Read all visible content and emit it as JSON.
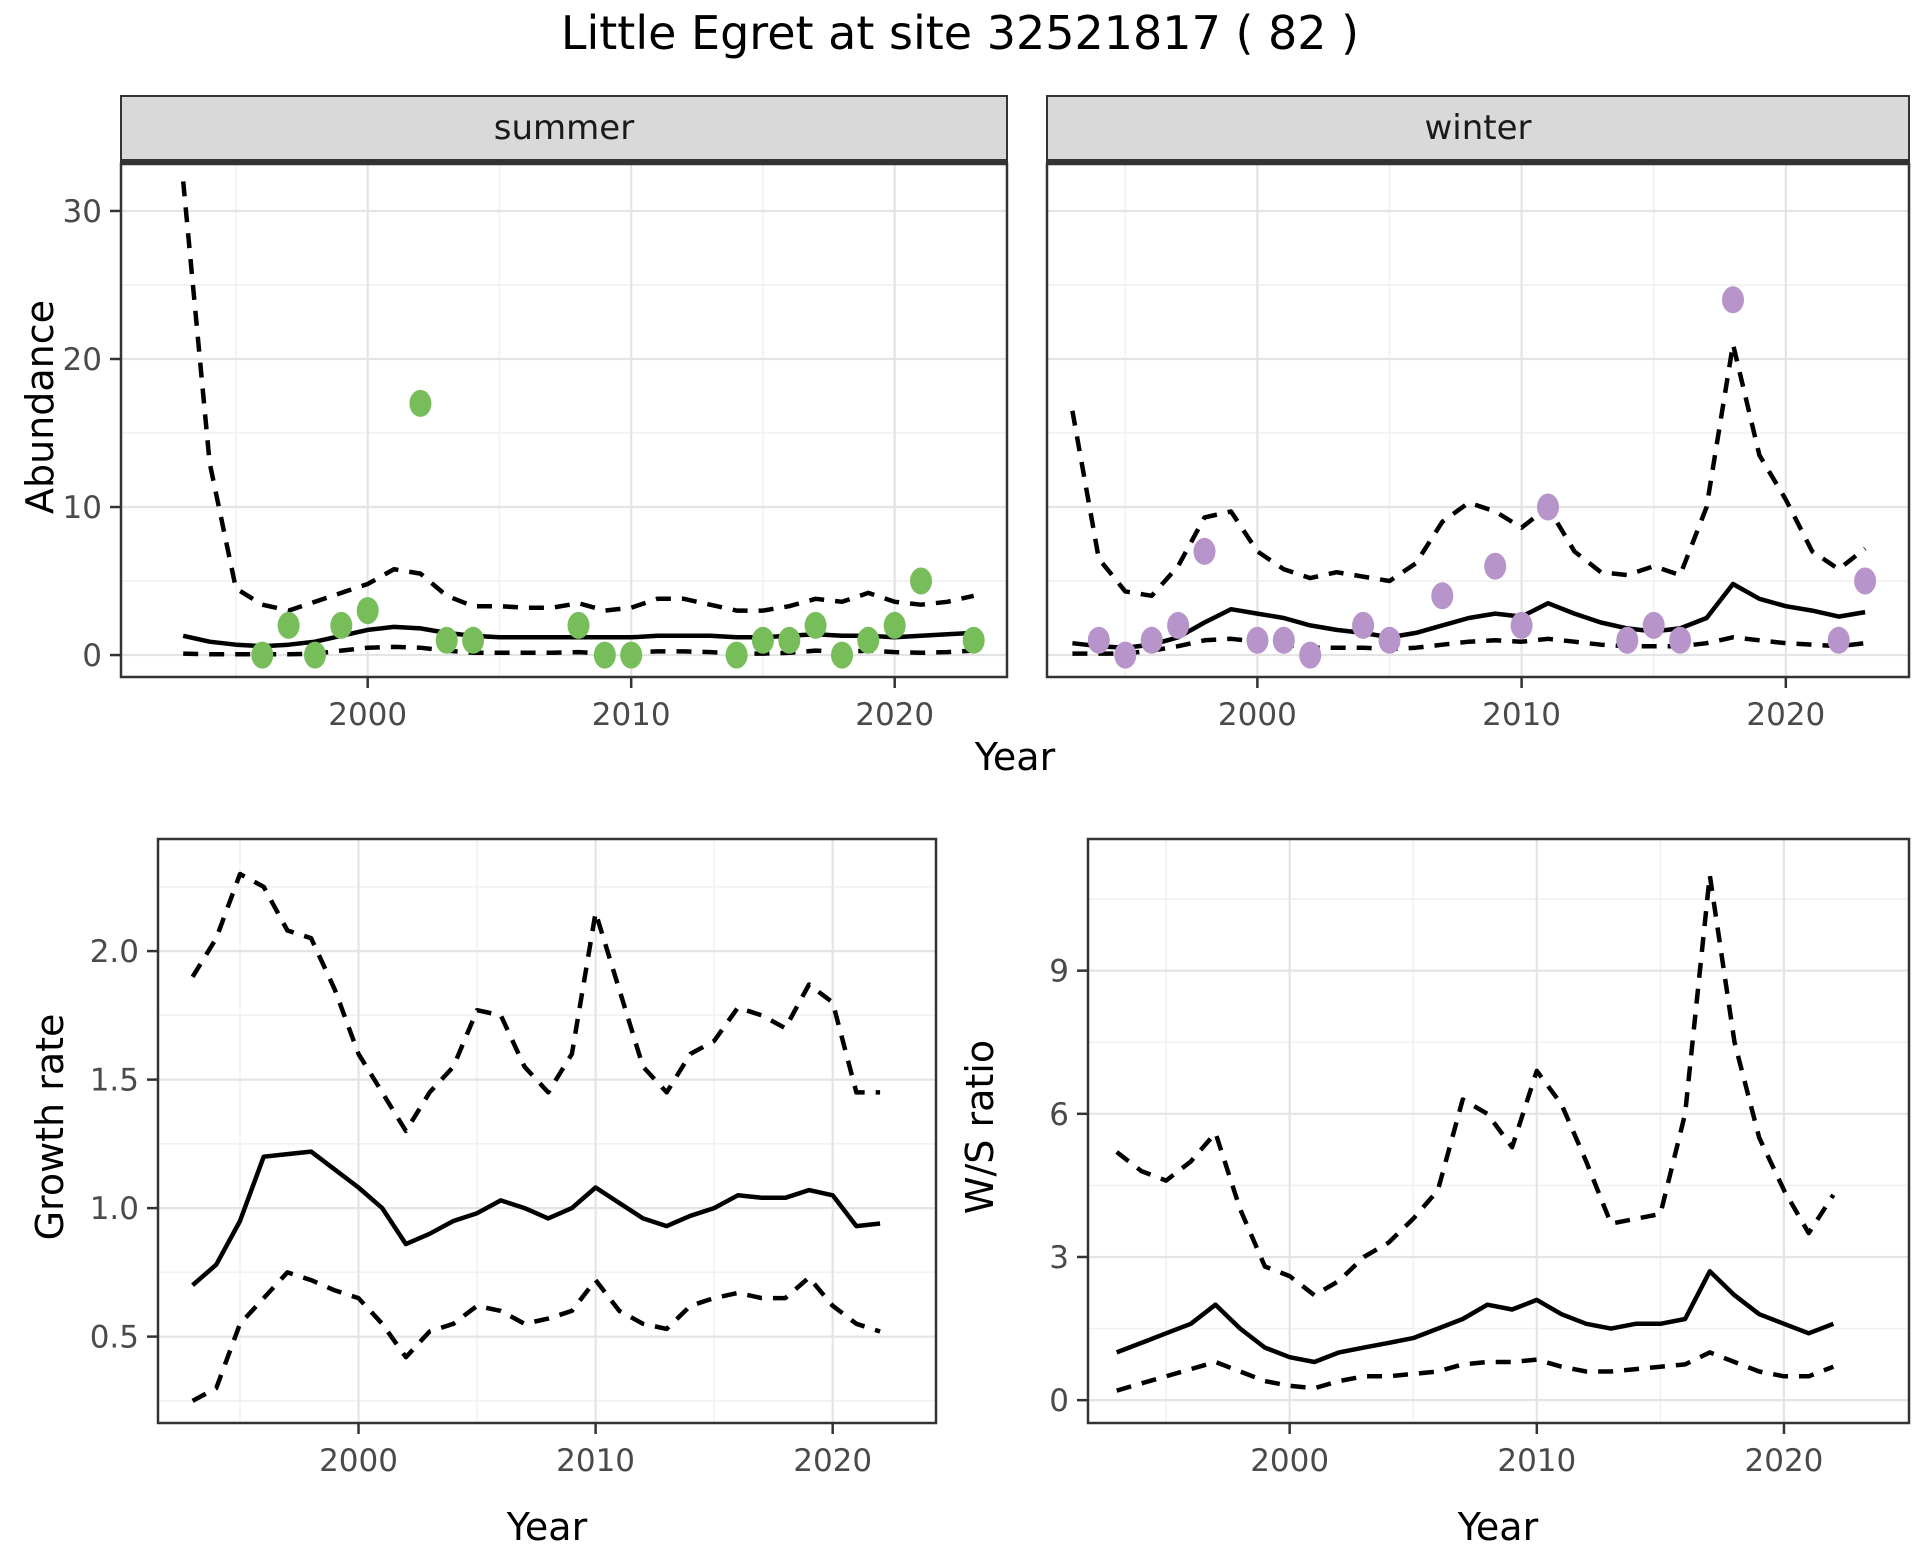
{
  "title": "Little Egret at site 32521817 ( 82 )",
  "axis_titles": {
    "x_top": "Year",
    "x_bottom_left": "Year",
    "x_bottom_right": "Year",
    "y_top": "Abundance",
    "y_growth": "Growth rate",
    "y_ws": "W/S ratio"
  },
  "colors": {
    "summer_points": "#77BE5B",
    "winter_points": "#B794C9",
    "line": "#000000",
    "strip_bg": "#d9d9d9",
    "panel_border": "#333333"
  },
  "chart_data": [
    {
      "id": "summer",
      "type": "line",
      "facet_label": "summer",
      "xlabel": "Year",
      "ylabel": "Abundance",
      "xlim": [
        1990.6,
        2024.3
      ],
      "ylim": [
        -1.55,
        33.24
      ],
      "x_ticks": {
        "major": [
          2000,
          2010,
          2020
        ],
        "minor": [
          1995,
          2005,
          2015
        ],
        "labels": [
          "2000",
          "2010",
          "2020"
        ],
        "show_labels": true
      },
      "y_ticks": {
        "major": [
          0,
          10,
          20,
          30
        ],
        "minor": [
          5,
          15,
          25
        ],
        "labels": [
          "0",
          "10",
          "20",
          "30"
        ],
        "show_labels": true
      },
      "series": [
        {
          "name": "upper-ci",
          "style": "dashed",
          "x": [
            1993,
            1994,
            1995,
            1996,
            1997,
            1998,
            1999,
            2000,
            2001,
            2002,
            2003,
            2004,
            2005,
            2006,
            2007,
            2008,
            2009,
            2010,
            2011,
            2012,
            2013,
            2014,
            2015,
            2016,
            2017,
            2018,
            2019,
            2020,
            2021,
            2022,
            2023
          ],
          "y": [
            32,
            13,
            4.5,
            3.4,
            3.0,
            3.6,
            4.2,
            4.8,
            5.8,
            5.5,
            4.0,
            3.3,
            3.3,
            3.2,
            3.2,
            3.5,
            3.0,
            3.2,
            3.8,
            3.8,
            3.4,
            3.0,
            3.0,
            3.3,
            3.8,
            3.6,
            4.2,
            3.6,
            3.4,
            3.6,
            4.0
          ]
        },
        {
          "name": "median",
          "style": "solid",
          "x": [
            1993,
            1994,
            1995,
            1996,
            1997,
            1998,
            1999,
            2000,
            2001,
            2002,
            2003,
            2004,
            2005,
            2006,
            2007,
            2008,
            2009,
            2010,
            2011,
            2012,
            2013,
            2014,
            2015,
            2016,
            2017,
            2018,
            2019,
            2020,
            2021,
            2022,
            2023
          ],
          "y": [
            1.3,
            0.9,
            0.7,
            0.6,
            0.7,
            0.9,
            1.3,
            1.7,
            1.9,
            1.8,
            1.5,
            1.3,
            1.2,
            1.2,
            1.2,
            1.2,
            1.2,
            1.2,
            1.3,
            1.3,
            1.3,
            1.2,
            1.2,
            1.3,
            1.4,
            1.3,
            1.3,
            1.2,
            1.3,
            1.4,
            1.5
          ]
        },
        {
          "name": "lower-ci",
          "style": "dashed",
          "x": [
            1993,
            1994,
            1995,
            1996,
            1997,
            1998,
            1999,
            2000,
            2001,
            2002,
            2003,
            2004,
            2005,
            2006,
            2007,
            2008,
            2009,
            2010,
            2011,
            2012,
            2013,
            2014,
            2015,
            2016,
            2017,
            2018,
            2019,
            2020,
            2021,
            2022,
            2023
          ],
          "y": [
            0.1,
            0.05,
            0.05,
            0.05,
            0.05,
            0.1,
            0.3,
            0.5,
            0.55,
            0.5,
            0.3,
            0.15,
            0.15,
            0.15,
            0.15,
            0.2,
            0.1,
            0.2,
            0.25,
            0.25,
            0.2,
            0.1,
            0.1,
            0.15,
            0.3,
            0.2,
            0.3,
            0.2,
            0.15,
            0.2,
            0.3
          ]
        }
      ],
      "points": {
        "name": "observed-abundance-summer",
        "color": "#77BE5B",
        "x": [
          1996,
          1997,
          1998,
          1999,
          2000,
          2002,
          2003,
          2004,
          2008,
          2009,
          2010,
          2014,
          2015,
          2016,
          2017,
          2018,
          2019,
          2020,
          2021,
          2023
        ],
        "y": [
          0,
          2,
          0,
          2,
          3,
          17,
          1,
          1,
          2,
          0,
          0,
          0,
          1,
          1,
          2,
          0,
          1,
          2,
          5,
          1
        ]
      }
    },
    {
      "id": "winter",
      "type": "line",
      "facet_label": "winter",
      "xlabel": "Year",
      "ylabel": "Abundance",
      "xlim": [
        1992.0,
        2024.7
      ],
      "ylim": [
        -1.55,
        33.24
      ],
      "x_ticks": {
        "major": [
          2000,
          2010,
          2020
        ],
        "minor": [
          1995,
          2005,
          2015
        ],
        "labels": [
          "2000",
          "2010",
          "2020"
        ],
        "show_labels": true
      },
      "y_ticks": {
        "major": [
          0,
          10,
          20,
          30
        ],
        "minor": [
          5,
          15,
          25
        ],
        "labels": [],
        "show_labels": false
      },
      "series": [
        {
          "name": "upper-ci",
          "style": "dashed",
          "x": [
            1993,
            1994,
            1995,
            1996,
            1997,
            1998,
            1999,
            2000,
            2001,
            2002,
            2003,
            2004,
            2005,
            2006,
            2007,
            2008,
            2009,
            2010,
            2011,
            2012,
            2013,
            2014,
            2015,
            2016,
            2017,
            2018,
            2019,
            2020,
            2021,
            2022,
            2023
          ],
          "y": [
            16.5,
            6.5,
            4.3,
            4.0,
            6.0,
            9.3,
            9.7,
            7.0,
            5.8,
            5.2,
            5.6,
            5.3,
            5.0,
            6.2,
            9.0,
            10.3,
            9.7,
            8.6,
            10.0,
            7.0,
            5.6,
            5.4,
            6.0,
            5.4,
            10.0,
            21.0,
            13.5,
            10.5,
            7.0,
            5.8,
            7.2
          ]
        },
        {
          "name": "median",
          "style": "solid",
          "x": [
            1993,
            1994,
            1995,
            1996,
            1997,
            1998,
            1999,
            2000,
            2001,
            2002,
            2003,
            2004,
            2005,
            2006,
            2007,
            2008,
            2009,
            2010,
            2011,
            2012,
            2013,
            2014,
            2015,
            2016,
            2017,
            2018,
            2019,
            2020,
            2021,
            2022,
            2023
          ],
          "y": [
            0.8,
            0.6,
            0.5,
            0.7,
            1.2,
            2.2,
            3.1,
            2.8,
            2.5,
            2.0,
            1.7,
            1.5,
            1.2,
            1.5,
            2.0,
            2.5,
            2.8,
            2.6,
            3.5,
            2.8,
            2.2,
            1.8,
            1.6,
            1.8,
            2.5,
            4.8,
            3.8,
            3.3,
            3.0,
            2.6,
            2.9
          ]
        },
        {
          "name": "lower-ci",
          "style": "dashed",
          "x": [
            1993,
            1994,
            1995,
            1996,
            1997,
            1998,
            1999,
            2000,
            2001,
            2002,
            2003,
            2004,
            2005,
            2006,
            2007,
            2008,
            2009,
            2010,
            2011,
            2012,
            2013,
            2014,
            2015,
            2016,
            2017,
            2018,
            2019,
            2020,
            2021,
            2022,
            2023
          ],
          "y": [
            0.1,
            0.1,
            0.1,
            0.3,
            0.6,
            1.0,
            1.1,
            0.9,
            0.7,
            0.5,
            0.5,
            0.5,
            0.4,
            0.5,
            0.7,
            0.9,
            1.0,
            0.9,
            1.1,
            0.9,
            0.7,
            0.6,
            0.6,
            0.6,
            0.8,
            1.2,
            1.0,
            0.8,
            0.7,
            0.6,
            0.8
          ]
        }
      ],
      "points": {
        "name": "observed-abundance-winter",
        "color": "#B794C9",
        "x": [
          1994,
          1995,
          1996,
          1997,
          1998,
          2000,
          2001,
          2002,
          2004,
          2005,
          2007,
          2009,
          2010,
          2011,
          2014,
          2015,
          2016,
          2018,
          2022,
          2023
        ],
        "y": [
          1,
          0,
          1,
          2,
          7,
          1,
          1,
          0,
          2,
          1,
          4,
          6,
          2,
          10,
          1,
          2,
          1,
          24,
          1,
          5
        ]
      }
    },
    {
      "id": "growth",
      "type": "line",
      "facet_label": "",
      "xlabel": "Year",
      "ylabel": "Growth rate",
      "xlim": [
        1991.5,
        2024.4
      ],
      "ylim": [
        0.16,
        2.44
      ],
      "x_ticks": {
        "major": [
          2000,
          2010,
          2020
        ],
        "minor": [
          1995,
          2005,
          2015
        ],
        "labels": [
          "2000",
          "2010",
          "2020"
        ],
        "show_labels": true
      },
      "y_ticks": {
        "major": [
          0.5,
          1.0,
          1.5,
          2.0
        ],
        "minor": [
          0.25,
          0.75,
          1.25,
          1.75,
          2.25
        ],
        "labels": [
          "0.5",
          "1.0",
          "1.5",
          "2.0"
        ],
        "show_labels": true
      },
      "series": [
        {
          "name": "upper-ci",
          "style": "dashed",
          "x": [
            1993,
            1994,
            1995,
            1996,
            1997,
            1998,
            1999,
            2000,
            2001,
            2002,
            2003,
            2004,
            2005,
            2006,
            2007,
            2008,
            2009,
            2010,
            2011,
            2012,
            2013,
            2014,
            2015,
            2016,
            2017,
            2018,
            2019,
            2020,
            2021,
            2022
          ],
          "y": [
            1.9,
            2.05,
            2.3,
            2.25,
            2.08,
            2.05,
            1.85,
            1.6,
            1.45,
            1.3,
            1.45,
            1.55,
            1.77,
            1.75,
            1.55,
            1.45,
            1.6,
            2.15,
            1.85,
            1.55,
            1.45,
            1.6,
            1.65,
            1.78,
            1.75,
            1.7,
            1.87,
            1.8,
            1.45,
            1.45
          ]
        },
        {
          "name": "median",
          "style": "solid",
          "x": [
            1993,
            1994,
            1995,
            1996,
            1997,
            1998,
            1999,
            2000,
            2001,
            2002,
            2003,
            2004,
            2005,
            2006,
            2007,
            2008,
            2009,
            2010,
            2011,
            2012,
            2013,
            2014,
            2015,
            2016,
            2017,
            2018,
            2019,
            2020,
            2021,
            2022
          ],
          "y": [
            0.7,
            0.78,
            0.95,
            1.2,
            1.21,
            1.22,
            1.15,
            1.08,
            1.0,
            0.86,
            0.9,
            0.95,
            0.98,
            1.03,
            1.0,
            0.96,
            1.0,
            1.08,
            1.02,
            0.96,
            0.93,
            0.97,
            1.0,
            1.05,
            1.04,
            1.04,
            1.07,
            1.05,
            0.93,
            0.94
          ]
        },
        {
          "name": "lower-ci",
          "style": "dashed",
          "x": [
            1993,
            1994,
            1995,
            1996,
            1997,
            1998,
            1999,
            2000,
            2001,
            2002,
            2003,
            2004,
            2005,
            2006,
            2007,
            2008,
            2009,
            2010,
            2011,
            2012,
            2013,
            2014,
            2015,
            2016,
            2017,
            2018,
            2019,
            2020,
            2021,
            2022
          ],
          "y": [
            0.25,
            0.3,
            0.55,
            0.65,
            0.75,
            0.72,
            0.68,
            0.65,
            0.55,
            0.42,
            0.52,
            0.55,
            0.62,
            0.6,
            0.55,
            0.57,
            0.6,
            0.72,
            0.6,
            0.55,
            0.53,
            0.62,
            0.65,
            0.67,
            0.65,
            0.65,
            0.73,
            0.62,
            0.55,
            0.52
          ]
        }
      ],
      "points": null
    },
    {
      "id": "ws",
      "type": "line",
      "facet_label": "",
      "xlabel": "Year",
      "ylabel": "W/S ratio",
      "xlim": [
        1991.8,
        2025.1
      ],
      "ylim": [
        -0.5,
        11.78
      ],
      "x_ticks": {
        "major": [
          2000,
          2010,
          2020
        ],
        "minor": [
          1995,
          2005,
          2015
        ],
        "labels": [
          "2000",
          "2010",
          "2020"
        ],
        "show_labels": true
      },
      "y_ticks": {
        "major": [
          0,
          3,
          6,
          9
        ],
        "minor": [
          1.5,
          4.5,
          7.5,
          10.5
        ],
        "labels": [
          "0",
          "3",
          "6",
          "9"
        ],
        "show_labels": true
      },
      "series": [
        {
          "name": "upper-ci",
          "style": "dashed",
          "x": [
            1993,
            1994,
            1995,
            1996,
            1997,
            1998,
            1999,
            2000,
            2001,
            2002,
            2003,
            2004,
            2005,
            2006,
            2007,
            2008,
            2009,
            2010,
            2011,
            2012,
            2013,
            2014,
            2015,
            2016,
            2017,
            2018,
            2019,
            2020,
            2021,
            2022
          ],
          "y": [
            5.2,
            4.8,
            4.6,
            5.0,
            5.6,
            4.0,
            2.8,
            2.6,
            2.2,
            2.5,
            3.0,
            3.3,
            3.8,
            4.4,
            6.3,
            6.0,
            5.3,
            6.9,
            6.2,
            5.0,
            3.7,
            3.8,
            3.9,
            6.0,
            11.0,
            7.5,
            5.5,
            4.4,
            3.5,
            4.3
          ]
        },
        {
          "name": "median",
          "style": "solid",
          "x": [
            1993,
            1994,
            1995,
            1996,
            1997,
            1998,
            1999,
            2000,
            2001,
            2002,
            2003,
            2004,
            2005,
            2006,
            2007,
            2008,
            2009,
            2010,
            2011,
            2012,
            2013,
            2014,
            2015,
            2016,
            2017,
            2018,
            2019,
            2020,
            2021,
            2022
          ],
          "y": [
            1.0,
            1.2,
            1.4,
            1.6,
            2.0,
            1.5,
            1.1,
            0.9,
            0.8,
            1.0,
            1.1,
            1.2,
            1.3,
            1.5,
            1.7,
            2.0,
            1.9,
            2.1,
            1.8,
            1.6,
            1.5,
            1.6,
            1.6,
            1.7,
            2.7,
            2.2,
            1.8,
            1.6,
            1.4,
            1.6
          ]
        },
        {
          "name": "lower-ci",
          "style": "dashed",
          "x": [
            1993,
            1994,
            1995,
            1996,
            1997,
            1998,
            1999,
            2000,
            2001,
            2002,
            2003,
            2004,
            2005,
            2006,
            2007,
            2008,
            2009,
            2010,
            2011,
            2012,
            2013,
            2014,
            2015,
            2016,
            2017,
            2018,
            2019,
            2020,
            2021,
            2022
          ],
          "y": [
            0.2,
            0.35,
            0.5,
            0.65,
            0.8,
            0.6,
            0.4,
            0.3,
            0.25,
            0.4,
            0.5,
            0.5,
            0.55,
            0.6,
            0.75,
            0.8,
            0.8,
            0.85,
            0.7,
            0.6,
            0.6,
            0.65,
            0.7,
            0.75,
            1.0,
            0.8,
            0.6,
            0.5,
            0.5,
            0.7
          ]
        }
      ],
      "points": null
    }
  ]
}
